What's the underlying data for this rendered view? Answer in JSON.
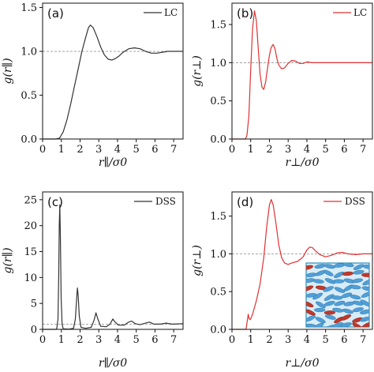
{
  "chart_data": [
    {
      "type": "line",
      "panel_label": "(a)",
      "xlabel": "r∥/σ0",
      "ylabel": "g(r∥)",
      "xlim": [
        0,
        7.5
      ],
      "ylim": [
        0,
        1.55
      ],
      "xticks": [
        0,
        1,
        2,
        3,
        4,
        5,
        6,
        7
      ],
      "yticks": [
        0.0,
        0.5,
        1.0,
        1.5
      ],
      "ytick_labels": [
        "0.0",
        "0.5",
        "1.0",
        "1.5"
      ],
      "reference_line": 1.0,
      "legend": "top-right",
      "series": [
        {
          "name": "LC",
          "color": "#333333",
          "points": [
            [
              0,
              0
            ],
            [
              0.7,
              0
            ],
            [
              0.9,
              0.01
            ],
            [
              1.1,
              0.08
            ],
            [
              1.3,
              0.22
            ],
            [
              1.5,
              0.4
            ],
            [
              1.7,
              0.6
            ],
            [
              1.9,
              0.8
            ],
            [
              2.1,
              1.0
            ],
            [
              2.3,
              1.16
            ],
            [
              2.45,
              1.27
            ],
            [
              2.55,
              1.3
            ],
            [
              2.7,
              1.27
            ],
            [
              2.9,
              1.17
            ],
            [
              3.1,
              1.05
            ],
            [
              3.3,
              0.96
            ],
            [
              3.5,
              0.91
            ],
            [
              3.7,
              0.9
            ],
            [
              3.9,
              0.92
            ],
            [
              4.1,
              0.95
            ],
            [
              4.3,
              0.99
            ],
            [
              4.6,
              1.03
            ],
            [
              4.9,
              1.04
            ],
            [
              5.2,
              1.03
            ],
            [
              5.5,
              1.0
            ],
            [
              5.8,
              0.98
            ],
            [
              6.1,
              0.98
            ],
            [
              6.4,
              0.99
            ],
            [
              6.7,
              1.0
            ],
            [
              7.0,
              1.0
            ],
            [
              7.5,
              1.0
            ]
          ]
        }
      ]
    },
    {
      "type": "line",
      "panel_label": "(b)",
      "xlabel": "r⊥/σ0",
      "ylabel": "g(r⊥)",
      "xlim": [
        0,
        7.5
      ],
      "ylim": [
        0,
        1.78
      ],
      "xticks": [
        0,
        1,
        2,
        3,
        4,
        5,
        6,
        7
      ],
      "yticks": [
        0.0,
        0.5,
        1.0,
        1.5
      ],
      "ytick_labels": [
        "0.0",
        "0.5",
        "1.0",
        "1.5"
      ],
      "reference_line": 1.0,
      "legend": "top-right",
      "series": [
        {
          "name": "LC",
          "color": "#e03131",
          "points": [
            [
              0,
              0
            ],
            [
              0.72,
              0
            ],
            [
              0.8,
              0.05
            ],
            [
              0.9,
              0.3
            ],
            [
              1.0,
              0.9
            ],
            [
              1.1,
              1.45
            ],
            [
              1.2,
              1.68
            ],
            [
              1.3,
              1.55
            ],
            [
              1.4,
              1.2
            ],
            [
              1.5,
              0.85
            ],
            [
              1.6,
              0.68
            ],
            [
              1.7,
              0.65
            ],
            [
              1.8,
              0.75
            ],
            [
              1.9,
              0.93
            ],
            [
              2.0,
              1.1
            ],
            [
              2.1,
              1.2
            ],
            [
              2.2,
              1.24
            ],
            [
              2.3,
              1.18
            ],
            [
              2.4,
              1.05
            ],
            [
              2.5,
              0.97
            ],
            [
              2.65,
              0.92
            ],
            [
              2.8,
              0.93
            ],
            [
              3.0,
              0.99
            ],
            [
              3.2,
              1.03
            ],
            [
              3.4,
              1.02
            ],
            [
              3.6,
              0.99
            ],
            [
              3.8,
              0.99
            ],
            [
              4.0,
              1.01
            ],
            [
              4.3,
              1.0
            ],
            [
              4.7,
              1.0
            ],
            [
              5.2,
              1.0
            ],
            [
              6.0,
              1.0
            ],
            [
              7.5,
              1.0
            ]
          ]
        }
      ]
    },
    {
      "type": "line",
      "panel_label": "(c)",
      "xlabel": "r∥/σ0",
      "ylabel": "g(r∥)",
      "xlim": [
        0,
        7.5
      ],
      "ylim": [
        0,
        26.5
      ],
      "xticks": [
        0,
        1,
        2,
        3,
        4,
        5,
        6,
        7
      ],
      "yticks": [
        0,
        5,
        10,
        15,
        20,
        25
      ],
      "ytick_labels": [
        "0",
        "5",
        "10",
        "15",
        "20",
        "25"
      ],
      "reference_line": 1.0,
      "legend": "top-right",
      "series": [
        {
          "name": "DSS",
          "color": "#333333",
          "points": [
            [
              0,
              0
            ],
            [
              0.75,
              0
            ],
            [
              0.82,
              2
            ],
            [
              0.86,
              10
            ],
            [
              0.89,
              20
            ],
            [
              0.92,
              24
            ],
            [
              0.95,
              18
            ],
            [
              0.99,
              6
            ],
            [
              1.04,
              1
            ],
            [
              1.1,
              0.1
            ],
            [
              1.4,
              0.05
            ],
            [
              1.65,
              0.2
            ],
            [
              1.75,
              2
            ],
            [
              1.82,
              6
            ],
            [
              1.86,
              8
            ],
            [
              1.9,
              6.5
            ],
            [
              1.96,
              2.5
            ],
            [
              2.05,
              0.4
            ],
            [
              2.3,
              0.2
            ],
            [
              2.6,
              0.4
            ],
            [
              2.75,
              1.8
            ],
            [
              2.85,
              3.2
            ],
            [
              2.95,
              2
            ],
            [
              3.1,
              0.6
            ],
            [
              3.4,
              0.5
            ],
            [
              3.6,
              1.0
            ],
            [
              3.75,
              2.0
            ],
            [
              3.85,
              1.5
            ],
            [
              4.05,
              0.8
            ],
            [
              4.35,
              0.8
            ],
            [
              4.6,
              1.4
            ],
            [
              4.75,
              1.6
            ],
            [
              4.95,
              1.1
            ],
            [
              5.2,
              0.9
            ],
            [
              5.5,
              1.2
            ],
            [
              5.7,
              1.4
            ],
            [
              5.95,
              1.0
            ],
            [
              6.3,
              1.0
            ],
            [
              6.6,
              1.2
            ],
            [
              6.9,
              1.0
            ],
            [
              7.2,
              1.05
            ],
            [
              7.5,
              1.1
            ]
          ]
        }
      ]
    },
    {
      "type": "line",
      "panel_label": "(d)",
      "xlabel": "r⊥/σ0",
      "ylabel": "g(r⊥)",
      "xlim": [
        0,
        7.5
      ],
      "ylim": [
        0,
        1.82
      ],
      "xticks": [
        0,
        1,
        2,
        3,
        4,
        5,
        6,
        7
      ],
      "yticks": [
        0.0,
        0.5,
        1.0,
        1.5
      ],
      "ytick_labels": [
        "0.0",
        "0.5",
        "1.0",
        "1.5"
      ],
      "reference_line": 1.0,
      "legend": "top-right",
      "inset": "snapshot of ellipsoidal particles",
      "series": [
        {
          "name": "DSS",
          "color": "#e03131",
          "points": [
            [
              0,
              0
            ],
            [
              0.75,
              0
            ],
            [
              0.82,
              0.12
            ],
            [
              0.87,
              0.2
            ],
            [
              0.92,
              0.14
            ],
            [
              0.98,
              0.13
            ],
            [
              1.1,
              0.2
            ],
            [
              1.3,
              0.38
            ],
            [
              1.5,
              0.6
            ],
            [
              1.7,
              0.95
            ],
            [
              1.85,
              1.35
            ],
            [
              2.0,
              1.65
            ],
            [
              2.1,
              1.72
            ],
            [
              2.2,
              1.65
            ],
            [
              2.35,
              1.4
            ],
            [
              2.5,
              1.12
            ],
            [
              2.65,
              0.95
            ],
            [
              2.8,
              0.88
            ],
            [
              3.0,
              0.86
            ],
            [
              3.2,
              0.88
            ],
            [
              3.5,
              0.9
            ],
            [
              3.8,
              0.96
            ],
            [
              4.0,
              1.05
            ],
            [
              4.15,
              1.09
            ],
            [
              4.3,
              1.08
            ],
            [
              4.5,
              1.03
            ],
            [
              4.7,
              0.99
            ],
            [
              5.0,
              0.96
            ],
            [
              5.3,
              0.98
            ],
            [
              5.6,
              1.01
            ],
            [
              5.9,
              1.02
            ],
            [
              6.2,
              1.0
            ],
            [
              6.6,
              0.99
            ],
            [
              7.0,
              1.0
            ],
            [
              7.5,
              1.0
            ]
          ]
        }
      ]
    }
  ]
}
